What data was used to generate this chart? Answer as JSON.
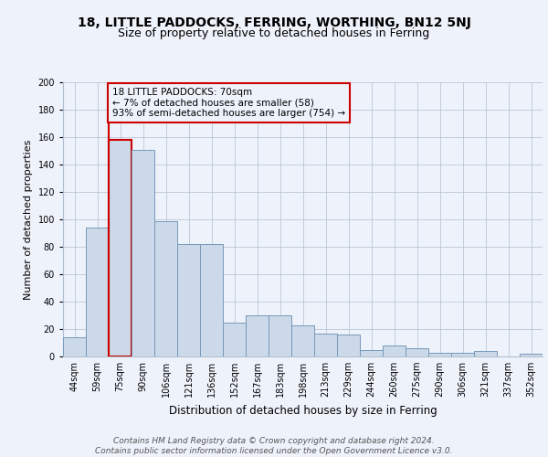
{
  "title1": "18, LITTLE PADDOCKS, FERRING, WORTHING, BN12 5NJ",
  "title2": "Size of property relative to detached houses in Ferring",
  "xlabel": "Distribution of detached houses by size in Ferring",
  "ylabel": "Number of detached properties",
  "categories": [
    "44sqm",
    "59sqm",
    "75sqm",
    "90sqm",
    "106sqm",
    "121sqm",
    "136sqm",
    "152sqm",
    "167sqm",
    "183sqm",
    "198sqm",
    "213sqm",
    "229sqm",
    "244sqm",
    "260sqm",
    "275sqm",
    "290sqm",
    "306sqm",
    "321sqm",
    "337sqm",
    "352sqm"
  ],
  "values": [
    14,
    94,
    158,
    151,
    99,
    82,
    82,
    25,
    30,
    30,
    23,
    17,
    16,
    5,
    8,
    6,
    3,
    3,
    4,
    0,
    2
  ],
  "bar_color": "#ccd9e8",
  "bar_edge_color": "#7799bb",
  "highlight_bar_index": 2,
  "highlight_bar_edge_color": "#cc0000",
  "annotation_box_text": "18 LITTLE PADDOCKS: 70sqm\n← 7% of detached houses are smaller (58)\n93% of semi-detached houses are larger (754) →",
  "annotation_color": "#cc0000",
  "ylim": [
    0,
    200
  ],
  "yticks": [
    0,
    20,
    40,
    60,
    80,
    100,
    120,
    140,
    160,
    180,
    200
  ],
  "footer_text": "Contains HM Land Registry data © Crown copyright and database right 2024.\nContains public sector information licensed under the Open Government Licence v3.0.",
  "background_color": "#eef2fa",
  "grid_color": "#b0bfd0",
  "title1_fontsize": 10,
  "title2_fontsize": 9,
  "xlabel_fontsize": 8.5,
  "ylabel_fontsize": 8,
  "tick_fontsize": 7,
  "footer_fontsize": 6.5
}
